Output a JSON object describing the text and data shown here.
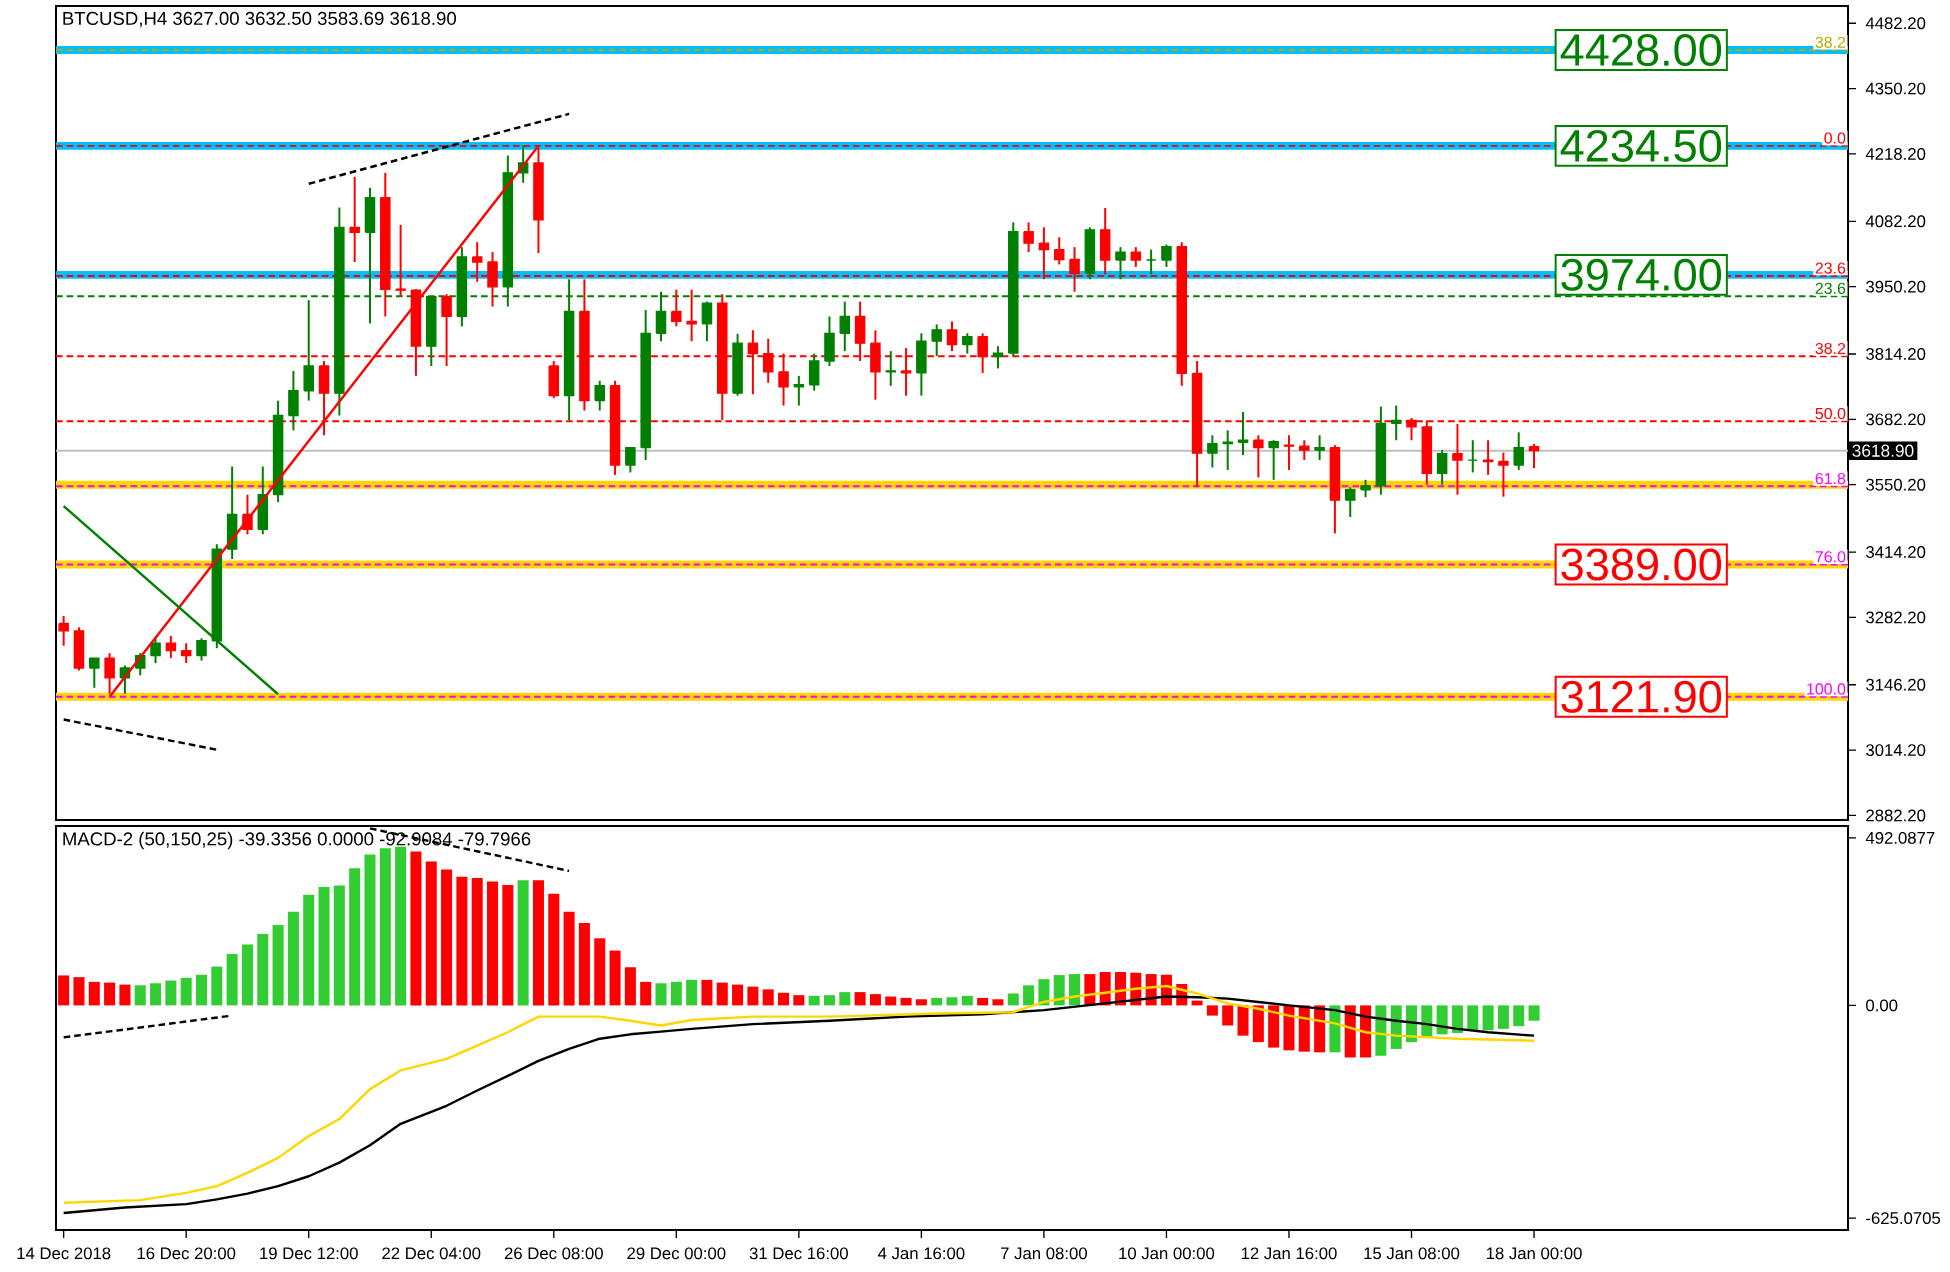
{
  "chart_data": [
    {
      "type": "candlestick",
      "title": "BTCUSD,H4 3627.00 3632.50 3583.69 3618.90",
      "categories": [
        null,
        null,
        null,
        null,
        null,
        null,
        null,
        null,
        null,
        null,
        null,
        null,
        null,
        null,
        null,
        null,
        null,
        null,
        null,
        null,
        null,
        null,
        null,
        null,
        null,
        null,
        null,
        null,
        null,
        null,
        null,
        null,
        null,
        null,
        null,
        null,
        null,
        null,
        null,
        null,
        null,
        null,
        null,
        null,
        null,
        null,
        null,
        null,
        null,
        null,
        null,
        null,
        null,
        null,
        null,
        null,
        null,
        null,
        null,
        null,
        null,
        null,
        null,
        null,
        null,
        null,
        null,
        null,
        null,
        null,
        null,
        null,
        null,
        null,
        null,
        null,
        null,
        null,
        null,
        null,
        null,
        null,
        null,
        null,
        null,
        null,
        null,
        null,
        null,
        null,
        null,
        null,
        null,
        null,
        null,
        null,
        null,
        null,
        null,
        null,
        null,
        null,
        null,
        null,
        null,
        null,
        null,
        null,
        null,
        null,
        null,
        null,
        null,
        null,
        null,
        null,
        null
      ],
      "ohlc": [
        [
          3270,
          3285,
          3225,
          3255
        ],
        [
          3255,
          3262,
          3175,
          3180
        ],
        [
          3180,
          3200,
          3140,
          3200
        ],
        [
          3200,
          3210,
          3128,
          3160
        ],
        [
          3160,
          3185,
          3128,
          3180
        ],
        [
          3180,
          3210,
          3165,
          3205
        ],
        [
          3205,
          3240,
          3190,
          3230
        ],
        [
          3230,
          3245,
          3200,
          3215
        ],
        [
          3215,
          3230,
          3190,
          3205
        ],
        [
          3205,
          3240,
          3195,
          3235
        ],
        [
          3235,
          3430,
          3220,
          3420
        ],
        [
          3420,
          3587,
          3400,
          3490
        ],
        [
          3490,
          3530,
          3450,
          3460
        ],
        [
          3460,
          3587,
          3450,
          3530
        ],
        [
          3530,
          3720,
          3515,
          3690
        ],
        [
          3690,
          3780,
          3660,
          3740
        ],
        [
          3740,
          3923,
          3720,
          3790
        ],
        [
          3790,
          3800,
          3650,
          3735
        ],
        [
          3735,
          4110,
          3690,
          4070
        ],
        [
          4070,
          4172,
          4000,
          4060
        ],
        [
          4060,
          4150,
          3876,
          4130
        ],
        [
          4130,
          4180,
          3890,
          3945
        ],
        [
          3945,
          4075,
          3930,
          3943
        ],
        [
          3943,
          3945,
          3770,
          3830
        ],
        [
          3830,
          3930,
          3790,
          3930
        ],
        [
          3930,
          3935,
          3790,
          3890
        ],
        [
          3890,
          4030,
          3870,
          4010
        ],
        [
          4010,
          4040,
          3960,
          4000
        ],
        [
          4000,
          4020,
          3910,
          3950
        ],
        [
          3950,
          4215,
          3910,
          4180
        ],
        [
          4180,
          4234.5,
          4160,
          4200
        ],
        [
          4200,
          4230,
          4018,
          4085
        ],
        [
          3790,
          3800,
          3725,
          3730
        ],
        [
          3730,
          3965,
          3680,
          3900
        ],
        [
          3900,
          3965,
          3700,
          3720
        ],
        [
          3720,
          3760,
          3700,
          3750
        ],
        [
          3750,
          3760,
          3570,
          3590
        ],
        [
          3590,
          3625,
          3575,
          3625
        ],
        [
          3625,
          3903,
          3600,
          3856
        ],
        [
          3856,
          3940,
          3840,
          3900
        ],
        [
          3900,
          3944,
          3870,
          3880
        ],
        [
          3880,
          3944,
          3840,
          3875
        ],
        [
          3875,
          3920,
          3840,
          3917
        ],
        [
          3917,
          3935,
          3681,
          3735
        ],
        [
          3735,
          3855,
          3730,
          3836
        ],
        [
          3836,
          3862,
          3733,
          3815
        ],
        [
          3815,
          3845,
          3756,
          3778
        ],
        [
          3778,
          3815,
          3710,
          3748
        ],
        [
          3748,
          3770,
          3710,
          3752
        ],
        [
          3752,
          3815,
          3740,
          3800
        ],
        [
          3800,
          3890,
          3790,
          3856
        ],
        [
          3856,
          3920,
          3820,
          3890
        ],
        [
          3890,
          3920,
          3800,
          3836
        ],
        [
          3836,
          3862,
          3722,
          3778
        ],
        [
          3778,
          3820,
          3750,
          3780
        ],
        [
          3780,
          3826,
          3730,
          3776
        ],
        [
          3776,
          3856,
          3730,
          3840
        ],
        [
          3840,
          3874,
          3810,
          3863
        ],
        [
          3863,
          3880,
          3820,
          3833
        ],
        [
          3833,
          3856,
          3815,
          3849
        ],
        [
          3849,
          3856,
          3776,
          3809
        ],
        [
          3809,
          3830,
          3785,
          3816
        ],
        [
          3816,
          4080,
          3810,
          4061
        ],
        [
          4061,
          4080,
          4020,
          4038
        ],
        [
          4038,
          4070,
          3965,
          4025
        ],
        [
          4025,
          4050,
          3995,
          4005
        ],
        [
          4005,
          4030,
          3940,
          3977
        ],
        [
          3977,
          4070,
          3965,
          4065
        ],
        [
          4065,
          4109,
          3975,
          4004
        ],
        [
          4004,
          4030,
          3965,
          4020
        ],
        [
          4020,
          4030,
          3990,
          4004
        ],
        [
          4004,
          4025,
          3975,
          4004
        ],
        [
          4004,
          4035,
          3990,
          4031
        ],
        [
          4031,
          4040,
          3750,
          3775
        ],
        [
          3775,
          3800,
          3546,
          3614
        ],
        [
          3614,
          3650,
          3585,
          3633
        ],
        [
          3633,
          3660,
          3580,
          3636
        ],
        [
          3636,
          3697,
          3610,
          3640
        ],
        [
          3640,
          3650,
          3565,
          3625
        ],
        [
          3625,
          3640,
          3560,
          3637
        ],
        [
          3630,
          3650,
          3580,
          3628
        ],
        [
          3628,
          3640,
          3600,
          3620
        ],
        [
          3620,
          3650,
          3600,
          3625
        ],
        [
          3625,
          3630,
          3452,
          3519
        ],
        [
          3519,
          3545,
          3485,
          3540
        ],
        [
          3540,
          3560,
          3525,
          3548
        ],
        [
          3548,
          3708,
          3530,
          3674
        ],
        [
          3674,
          3710,
          3640,
          3680
        ],
        [
          3680,
          3685,
          3640,
          3667
        ],
        [
          3667,
          3680,
          3550,
          3573
        ],
        [
          3573,
          3620,
          3550,
          3613
        ],
        [
          3613,
          3673,
          3530,
          3600
        ],
        [
          3600,
          3640,
          3575,
          3600
        ],
        [
          3600,
          3640,
          3570,
          3597
        ],
        [
          3597,
          3615,
          3526,
          3590
        ],
        [
          3590,
          3656,
          3580,
          3625
        ],
        [
          3627,
          3632.5,
          3583.69,
          3618.9
        ],
        null,
        null,
        null,
        null,
        null,
        null,
        null,
        null,
        null,
        null,
        null,
        null,
        null,
        null,
        null,
        null,
        null,
        null,
        null,
        null
      ],
      "ylim": [
        2873,
        4517
      ],
      "yticks": [
        {
          "value": 4482.2,
          "label": "4482.20"
        },
        {
          "value": 4350.2,
          "label": "4350.20"
        },
        {
          "value": 4218.2,
          "label": "4218.20"
        },
        {
          "value": 4082.2,
          "label": "4082.20"
        },
        {
          "value": 3950.2,
          "label": "3950.20"
        },
        {
          "value": 3814.2,
          "label": "3814.20"
        },
        {
          "value": 3682.2,
          "label": "3682.20"
        },
        {
          "value": 3550.2,
          "label": "3550.20"
        },
        {
          "value": 3414.2,
          "label": "3414.20"
        },
        {
          "value": 3282.2,
          "label": "3282.20"
        },
        {
          "value": 3146.2,
          "label": "3146.20"
        },
        {
          "value": 3014.2,
          "label": "3014.20"
        },
        {
          "value": 2882.2,
          "label": "2882.20"
        }
      ],
      "tick_labels": "y",
      "ref_lines": [
        {
          "axis": "y",
          "value": 4428,
          "label": "4428.00",
          "color": "#00bfff",
          "line_style": "solid"
        },
        {
          "axis": "y",
          "value": 4234.5,
          "label": "4234.50",
          "color": "#00bfff",
          "line_style": "solid"
        },
        {
          "axis": "y",
          "value": 3974,
          "label": "3974.00",
          "color": "#00bfff",
          "line_style": "solid"
        },
        {
          "axis": "y",
          "value": 3550,
          "color": "#ffd700",
          "line_style": "solid"
        },
        {
          "axis": "y",
          "value": 3389,
          "label": "3389.00",
          "color": "#ffd700",
          "line_style": "solid"
        },
        {
          "axis": "y",
          "value": 3121.9,
          "label": "3121.90",
          "color": "#ffd700",
          "line_style": "solid"
        },
        {
          "axis": "y",
          "value": 3618.9,
          "label": "3618.90",
          "color": "#c0c0c0",
          "line_style": "solid"
        },
        {
          "axis": "y",
          "value": 4428,
          "color": "#b5a800",
          "line_style": "dashed"
        },
        {
          "axis": "y",
          "value": 4234.5,
          "color": "#ff0000",
          "line_style": "dashed"
        },
        {
          "axis": "y",
          "value": 3971.9,
          "color": "#ff0000",
          "line_style": "dashed"
        },
        {
          "axis": "y",
          "value": 3931,
          "color": "#008000",
          "line_style": "dashed"
        },
        {
          "axis": "y",
          "value": 3809.5,
          "color": "#ff0000",
          "line_style": "dashed"
        },
        {
          "axis": "y",
          "value": 3678.2,
          "color": "#ff0000",
          "line_style": "dashed"
        },
        {
          "axis": "y",
          "value": 3546.9,
          "color": "#ff00ff",
          "line_style": "dashed"
        },
        {
          "axis": "y",
          "value": 3388.9,
          "color": "#ff00ff",
          "line_style": "dashed"
        },
        {
          "axis": "y",
          "value": 3121.9,
          "color": "#ff00ff",
          "line_style": "dashed"
        }
      ],
      "annotations": [
        {
          "text": "38.2",
          "y": 4428
        },
        {
          "text": "0.0",
          "y": 4234.5
        },
        {
          "text": "23.6",
          "y": 3971.9
        },
        {
          "text": "23.6",
          "y": 3931
        },
        {
          "text": "38.2",
          "y": 3809.5
        },
        {
          "text": "50.0",
          "y": 3678.2
        },
        {
          "text": "61.8",
          "y": 3546.9
        },
        {
          "text": "76.0",
          "y": 3388.9
        },
        {
          "text": "100.0",
          "y": 3121.9
        }
      ],
      "series": [
        {
          "type": "line",
          "color": "#000000",
          "line_style": "dashed",
          "values": [
            null,
            null,
            null,
            null,
            null,
            null,
            null,
            null,
            null,
            null,
            null,
            null,
            null,
            null,
            null,
            null,
            4158,
            null,
            null,
            null,
            null,
            null,
            null,
            null,
            null,
            null,
            null,
            null,
            null,
            null,
            null,
            null,
            null,
            4299,
            null,
            null,
            null,
            null,
            null,
            null,
            null,
            null,
            null,
            null,
            null,
            null,
            null,
            null,
            null,
            null,
            null,
            null,
            null,
            null,
            null,
            null,
            null,
            null,
            null,
            null,
            null,
            null,
            null,
            null,
            null,
            null,
            null,
            null,
            null,
            null,
            null,
            null,
            null,
            null,
            null,
            null,
            null,
            null,
            null,
            null,
            null,
            null,
            null,
            null,
            null,
            null,
            null,
            null,
            null,
            null,
            null,
            null,
            null,
            null,
            null,
            null,
            null,
            null,
            null,
            null,
            null,
            null,
            null,
            null,
            null,
            null,
            null,
            null,
            null,
            null,
            null,
            null,
            null,
            null,
            null,
            null,
            null
          ]
        },
        {
          "type": "line",
          "color": "#ff0000",
          "line_style": "solid",
          "values": [
            null,
            null,
            null,
            3121.9,
            null,
            null,
            null,
            null,
            null,
            null,
            null,
            null,
            null,
            null,
            null,
            null,
            null,
            null,
            null,
            null,
            null,
            null,
            null,
            null,
            null,
            null,
            null,
            null,
            null,
            null,
            null,
            4234.5,
            null,
            null,
            null,
            null,
            null,
            null,
            null,
            null,
            null,
            null,
            null,
            null,
            null,
            null,
            null,
            null,
            null,
            null,
            null,
            null,
            null,
            null,
            null,
            null,
            null,
            null,
            null,
            null,
            null,
            null,
            null,
            null,
            null,
            null,
            null,
            null,
            null,
            null,
            null,
            null,
            null,
            null,
            null,
            null,
            null,
            null,
            null,
            null,
            null,
            null,
            null,
            null,
            null,
            null,
            null,
            null,
            null,
            null,
            null,
            null,
            null,
            null,
            null,
            null,
            null,
            null,
            null,
            null,
            null,
            null,
            null,
            null,
            null,
            null,
            null,
            null,
            null,
            null,
            null,
            null,
            null,
            null,
            null,
            null,
            null
          ]
        },
        {
          "type": "line",
          "color": "#008000",
          "line_style": "solid",
          "values": [
            3507,
            null,
            null,
            null,
            null,
            null,
            null,
            null,
            null,
            null,
            null,
            null,
            null,
            null,
            3127,
            null,
            null,
            null,
            null,
            null,
            null,
            null,
            null,
            null,
            null,
            null,
            null,
            null,
            null,
            null,
            null,
            null,
            null,
            null,
            null,
            null,
            null,
            null,
            null,
            null,
            null,
            null,
            null,
            null,
            null,
            null,
            null,
            null,
            null,
            null,
            null,
            null,
            null,
            null,
            null,
            null,
            null,
            null,
            null,
            null,
            null,
            null,
            null,
            null,
            null,
            null,
            null,
            null,
            null,
            null,
            null,
            null,
            null,
            null,
            null,
            null,
            null,
            null,
            null,
            null,
            null,
            null,
            null,
            null,
            null,
            null,
            null,
            null,
            null,
            null,
            null,
            null,
            null,
            null,
            null,
            null,
            null,
            null,
            null,
            null,
            null,
            null,
            null,
            null,
            null,
            null,
            null,
            null,
            null,
            null,
            null,
            null,
            null,
            null,
            null,
            null,
            null
          ]
        },
        {
          "type": "line",
          "color": "#000000",
          "line_style": "dashed",
          "values": [
            3076,
            null,
            null,
            null,
            null,
            null,
            null,
            null,
            null,
            null,
            3015,
            null,
            null,
            null,
            null,
            null,
            null,
            null,
            null,
            null,
            null,
            null,
            null,
            null,
            null,
            null,
            null,
            null,
            null,
            null,
            null,
            null,
            null,
            null,
            null,
            null,
            null,
            null,
            null,
            null,
            null,
            null,
            null,
            null,
            null,
            null,
            null,
            null,
            null,
            null,
            null,
            null,
            null,
            null,
            null,
            null,
            null,
            null,
            null,
            null,
            null,
            null,
            null,
            null,
            null,
            null,
            null,
            null,
            null,
            null,
            null,
            null,
            null,
            null,
            null,
            null,
            null,
            null,
            null,
            null,
            null,
            null,
            null,
            null,
            null,
            null,
            null,
            null,
            null,
            null,
            null,
            null,
            null,
            null,
            null,
            null,
            null,
            null,
            null,
            null,
            null,
            null,
            null,
            null,
            null,
            null,
            null,
            null,
            null,
            null,
            null,
            null,
            null,
            null,
            null,
            null,
            null
          ]
        }
      ]
    },
    {
      "type": "bar",
      "title": "MACD-2 (50,150,25) -39.3356 0.0000 -92.9084 -79.7966",
      "categories": [
        "14 Dec 2018",
        null,
        null,
        null,
        null,
        null,
        null,
        null,
        "16 Dec 20:00",
        null,
        null,
        null,
        null,
        null,
        null,
        null,
        "19 Dec 12:00",
        null,
        null,
        null,
        null,
        null,
        null,
        null,
        "22 Dec 04:00",
        null,
        null,
        null,
        null,
        null,
        null,
        null,
        "26 Dec 08:00",
        null,
        null,
        null,
        null,
        null,
        null,
        null,
        "29 Dec 00:00",
        null,
        null,
        null,
        null,
        null,
        null,
        null,
        "31 Dec 16:00",
        null,
        null,
        null,
        null,
        null,
        null,
        null,
        "4 Jan 16:00",
        null,
        null,
        null,
        null,
        null,
        null,
        null,
        "7 Jan 08:00",
        null,
        null,
        null,
        null,
        null,
        null,
        null,
        "10 Jan 00:00",
        null,
        null,
        null,
        null,
        null,
        null,
        null,
        "12 Jan 16:00",
        null,
        null,
        null,
        null,
        null,
        null,
        null,
        "15 Jan 08:00",
        null,
        null,
        null,
        null,
        null,
        null,
        null,
        "18 Jan 00:00",
        null,
        null,
        null,
        null,
        null,
        null,
        null,
        null,
        null,
        null,
        null,
        null,
        null,
        null,
        null,
        null,
        null,
        null,
        null,
        null
      ],
      "ylim": [
        -660,
        527
      ],
      "yticks": [
        {
          "value": 492.0877,
          "label": "492.0877"
        },
        {
          "value": 0,
          "label": "0.00"
        },
        {
          "value": -625.0705,
          "label": "-625.0705"
        }
      ],
      "series": [
        {
          "type": "bar",
          "values": [
            88,
            83,
            69,
            67,
            61,
            59,
            65,
            73,
            81,
            90,
            114,
            151,
            179,
            210,
            236,
            275,
            325,
            348,
            352,
            403,
            443,
            462,
            466,
            452,
            423,
            399,
            378,
            374,
            364,
            354,
            368,
            368,
            328,
            275,
            242,
            197,
            161,
            112,
            69,
            65,
            69,
            75,
            75,
            67,
            61,
            55,
            47,
            37,
            30,
            28,
            30,
            39,
            39,
            33,
            26,
            22,
            18,
            22,
            24,
            28,
            22,
            18,
            35,
            59,
            77,
            89,
            92,
            92,
            98,
            98,
            96,
            92,
            90,
            63,
            14,
            -30,
            -59,
            -89,
            -108,
            -124,
            -132,
            -136,
            -138,
            -138,
            -153,
            -153,
            -148,
            -128,
            -108,
            -92,
            -85,
            -81,
            -75,
            -73,
            -69,
            -61,
            -45,
            null,
            null,
            null,
            null,
            null,
            null,
            null,
            null,
            null,
            null,
            null,
            null,
            null,
            null,
            null,
            null,
            null,
            null,
            null,
            null
          ],
          "colors": [
            "#ff0000",
            "#ff0000",
            "#ff0000",
            "#ff0000",
            "#ff0000",
            "#32cd32",
            "#32cd32",
            "#32cd32",
            "#32cd32",
            "#32cd32",
            "#32cd32",
            "#32cd32",
            "#32cd32",
            "#32cd32",
            "#32cd32",
            "#32cd32",
            "#32cd32",
            "#32cd32",
            "#32cd32",
            "#32cd32",
            "#32cd32",
            "#32cd32",
            "#32cd32",
            "#ff0000",
            "#ff0000",
            "#ff0000",
            "#ff0000",
            "#ff0000",
            "#ff0000",
            "#ff0000",
            "#32cd32",
            "#ff0000",
            "#ff0000",
            "#ff0000",
            "#ff0000",
            "#ff0000",
            "#ff0000",
            "#ff0000",
            "#ff0000",
            "#32cd32",
            "#32cd32",
            "#32cd32",
            "#ff0000",
            "#ff0000",
            "#ff0000",
            "#ff0000",
            "#ff0000",
            "#ff0000",
            "#ff0000",
            "#32cd32",
            "#32cd32",
            "#32cd32",
            "#ff0000",
            "#ff0000",
            "#ff0000",
            "#ff0000",
            "#ff0000",
            "#32cd32",
            "#32cd32",
            "#32cd32",
            "#ff0000",
            "#ff0000",
            "#32cd32",
            "#32cd32",
            "#32cd32",
            "#32cd32",
            "#32cd32",
            "#ff0000",
            "#ff0000",
            "#ff0000",
            "#ff0000",
            "#ff0000",
            "#ff0000",
            "#ff0000",
            "#ff0000",
            "#ff0000",
            "#ff0000",
            "#ff0000",
            "#ff0000",
            "#ff0000",
            "#ff0000",
            "#ff0000",
            "#ff0000",
            "#32cd32",
            "#ff0000",
            "#ff0000",
            "#32cd32",
            "#32cd32",
            "#32cd32",
            "#32cd32",
            "#32cd32",
            "#32cd32",
            "#32cd32",
            "#32cd32",
            "#32cd32",
            "#32cd32",
            "#32cd32",
            null,
            null,
            null,
            null,
            null,
            null,
            null,
            null,
            null,
            null,
            null,
            null,
            null,
            null,
            null,
            null,
            null,
            null,
            null,
            null
          ]
        },
        {
          "type": "line",
          "color": "#000000",
          "values": [
            -610,
            null,
            null,
            null,
            -594,
            null,
            null,
            null,
            -584,
            null,
            -570,
            null,
            -553,
            null,
            -531,
            null,
            -502,
            null,
            -462,
            null,
            -411,
            null,
            -348,
            null,
            null,
            -295,
            null,
            -250,
            null,
            -207,
            null,
            -163,
            null,
            -128,
            null,
            -98,
            null,
            -85,
            null,
            -77,
            null,
            -69,
            null,
            null,
            null,
            -55,
            null,
            null,
            null,
            null,
            -45,
            null,
            null,
            null,
            null,
            -33,
            null,
            null,
            null,
            null,
            -26,
            null,
            null,
            null,
            -14,
            null,
            null,
            null,
            6,
            null,
            null,
            null,
            26,
            null,
            24,
            null,
            20,
            null,
            10,
            null,
            0,
            null,
            null,
            -14,
            null,
            -33,
            null,
            -45,
            null,
            -55,
            null,
            -69,
            null,
            -79,
            null,
            null,
            -89,
            null,
            null,
            null,
            null,
            null,
            null,
            null,
            null,
            null,
            null,
            null,
            null,
            null,
            null,
            null,
            null,
            null,
            null,
            null,
            null
          ]
        },
        {
          "type": "line",
          "color": "#ffd700",
          "values": [
            -580,
            null,
            null,
            null,
            null,
            -572,
            null,
            null,
            -551,
            null,
            -531,
            null,
            -492,
            null,
            -448,
            null,
            -384,
            null,
            -334,
            null,
            -246,
            null,
            -191,
            null,
            null,
            -157,
            null,
            -118,
            null,
            -79,
            null,
            -33,
            null,
            null,
            null,
            -33,
            null,
            -45,
            null,
            -59,
            null,
            -43,
            null,
            null,
            null,
            -33,
            null,
            null,
            null,
            null,
            -33,
            null,
            null,
            null,
            null,
            null,
            null,
            -24,
            null,
            null,
            null,
            null,
            -20,
            null,
            10,
            null,
            26,
            null,
            37,
            null,
            49,
            null,
            57,
            null,
            35,
            null,
            6,
            null,
            -10,
            null,
            -30,
            null,
            null,
            -53,
            null,
            -79,
            null,
            -89,
            null,
            null,
            null,
            -98,
            null,
            null,
            null,
            null,
            -104,
            null,
            null,
            null,
            null,
            null,
            null,
            null,
            null,
            null,
            null,
            null,
            null,
            null,
            null,
            null,
            null,
            null,
            null,
            null,
            null
          ]
        },
        {
          "type": "line",
          "color": "#000000",
          "line_style": "dashed",
          "values": [
            -94,
            null,
            null,
            null,
            null,
            null,
            null,
            null,
            null,
            null,
            null,
            -30,
            null,
            null,
            null,
            null,
            null,
            null,
            null,
            null,
            null,
            null,
            null,
            null,
            null,
            null,
            null,
            null,
            null,
            null,
            null,
            null,
            null,
            null,
            null,
            null,
            null,
            null,
            null,
            null,
            null,
            null,
            null,
            null,
            null,
            null,
            null,
            null,
            null,
            null,
            null,
            null,
            null,
            null,
            null,
            null,
            null,
            null,
            null,
            null,
            null,
            null,
            null,
            null,
            null,
            null,
            null,
            null,
            null,
            null,
            null,
            null,
            null,
            null,
            null,
            null,
            null,
            null,
            null,
            null,
            null,
            null,
            null,
            null,
            null,
            null,
            null,
            null,
            null,
            null,
            null,
            null,
            null,
            null,
            null,
            null,
            null,
            null,
            null,
            null,
            null,
            null,
            null,
            null,
            null,
            null,
            null,
            null,
            null,
            null,
            null,
            null,
            null,
            null,
            null,
            null,
            null
          ]
        },
        {
          "type": "line",
          "color": "#000000",
          "line_style": "dashed",
          "values": [
            null,
            null,
            null,
            null,
            null,
            null,
            null,
            null,
            null,
            null,
            null,
            null,
            null,
            null,
            null,
            null,
            null,
            null,
            null,
            null,
            520,
            null,
            null,
            null,
            null,
            null,
            null,
            null,
            null,
            null,
            null,
            null,
            null,
            395,
            null,
            null,
            null,
            null,
            null,
            null,
            null,
            null,
            null,
            null,
            null,
            null,
            null,
            null,
            null,
            null,
            null,
            null,
            null,
            null,
            null,
            null,
            null,
            null,
            null,
            null,
            null,
            null,
            null,
            null,
            null,
            null,
            null,
            null,
            null,
            null,
            null,
            null,
            null,
            null,
            null,
            null,
            null,
            null,
            null,
            null,
            null,
            null,
            null,
            null,
            null,
            null,
            null,
            null,
            null,
            null,
            null,
            null,
            null,
            null,
            null,
            null,
            null,
            null,
            null,
            null,
            null,
            null,
            null,
            null,
            null,
            null,
            null,
            null,
            null,
            null,
            null,
            null,
            null,
            null,
            null,
            null,
            null
          ]
        }
      ]
    }
  ]
}
